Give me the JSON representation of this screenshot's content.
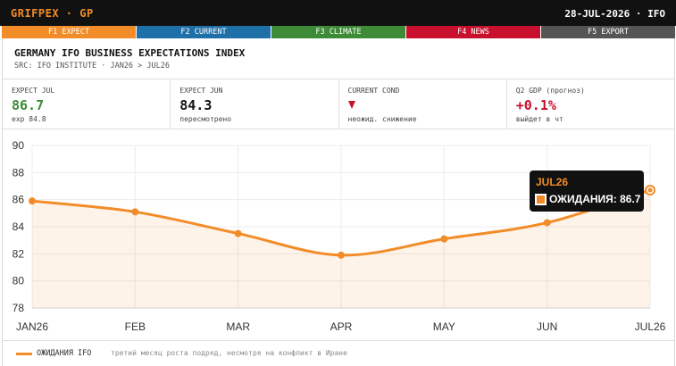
{
  "titlebar": {
    "ticker": "GRIFPEX · GP",
    "date": "28-JUL-2026 · IFO"
  },
  "fkeys": [
    {
      "label": "F1 EXPECT",
      "color": "#f28c28"
    },
    {
      "label": "F2 CURRENT",
      "color": "#1f6fa8"
    },
    {
      "label": "F3 CLIMATE",
      "color": "#3d8b37"
    },
    {
      "label": "F4 NEWS",
      "color": "#c8102e"
    },
    {
      "label": "F5 EXPORT",
      "color": "#555555"
    }
  ],
  "header": {
    "title": "GERMANY IFO BUSINESS EXPECTATIONS INDEX",
    "source": "SRC: IFO INSTITUTE · JAN26 > JUL26"
  },
  "kpis": [
    {
      "label": "EXPECT JUL",
      "value": "86.7",
      "sub": "exp 84.8"
    },
    {
      "label": "EXPECT JUN",
      "value": "84.3",
      "sub": "пересмотрено"
    },
    {
      "label": "CURRENT COND",
      "value": "",
      "sub": "неожид. снижение"
    },
    {
      "label": "Q2 GDP (прогноз)",
      "value": "+0.1%",
      "sub": "выйдет в чт"
    }
  ],
  "tooltip": {
    "date": "JUL26",
    "text": "ОЖИДАНИЯ: 86.7"
  },
  "footer": {
    "series": "ОЖИДАНИЯ IFO",
    "note": "третий месяц роста подряд, несмотря на конфликт в Иране"
  },
  "colors": {
    "accent": "#f28c28",
    "positive": "#3d8b37",
    "negative": "#c8102e"
  },
  "chart_data": {
    "type": "line",
    "categories": [
      "JAN26",
      "FEB",
      "MAR",
      "APR",
      "MAY",
      "JUN",
      "JUL26"
    ],
    "series": [
      {
        "name": "ОЖИДАНИЯ IFO",
        "values": [
          85.9,
          85.1,
          83.5,
          81.9,
          83.1,
          84.3,
          86.7
        ]
      }
    ],
    "yticks": [
      78,
      80,
      82,
      84,
      86,
      88,
      90
    ],
    "ylim": [
      78,
      90
    ],
    "grid": true
  }
}
